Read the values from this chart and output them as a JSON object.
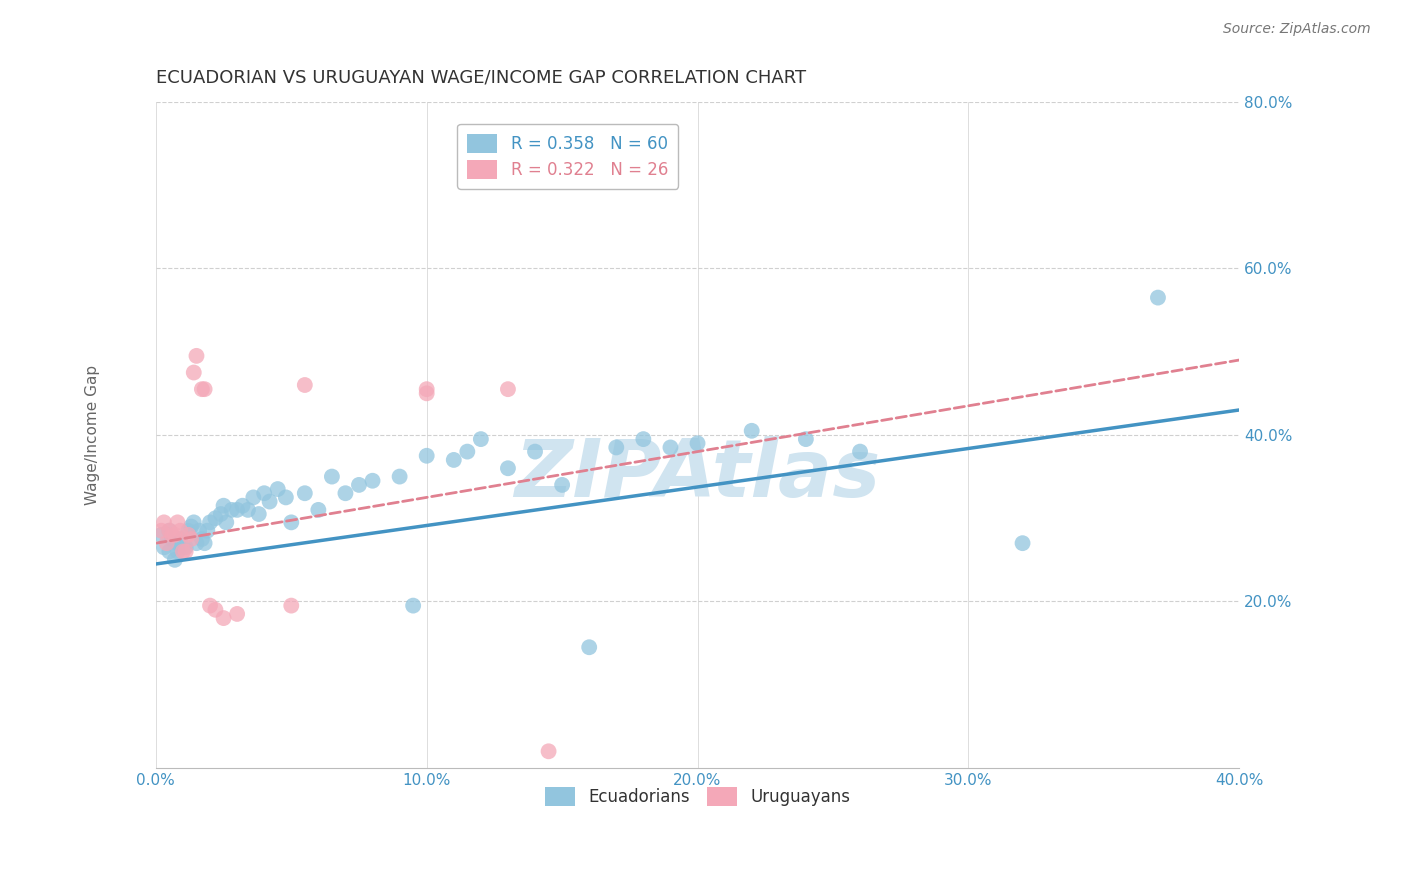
{
  "title": "ECUADORIAN VS URUGUAYAN WAGE/INCOME GAP CORRELATION CHART",
  "source": "Source: ZipAtlas.com",
  "ylabel": "Wage/Income Gap",
  "xlim": [
    0.0,
    0.4
  ],
  "ylim": [
    0.0,
    0.8
  ],
  "xtick_labels": [
    "0.0%",
    "",
    "",
    "",
    "",
    "10.0%",
    "",
    "",
    "",
    "",
    "20.0%",
    "",
    "",
    "",
    "",
    "30.0%",
    "",
    "",
    "",
    "",
    "40.0%"
  ],
  "xtick_vals": [
    0.0,
    0.02,
    0.04,
    0.06,
    0.08,
    0.1,
    0.12,
    0.14,
    0.16,
    0.18,
    0.2,
    0.22,
    0.24,
    0.26,
    0.28,
    0.3,
    0.32,
    0.34,
    0.36,
    0.38,
    0.4
  ],
  "ytick_labels": [
    "20.0%",
    "40.0%",
    "60.0%",
    "80.0%"
  ],
  "ytick_vals": [
    0.2,
    0.4,
    0.6,
    0.8
  ],
  "blue_color": "#92c5de",
  "pink_color": "#f4a8b8",
  "line_blue": "#4393c3",
  "line_pink": "#d6604d",
  "line_pink_display": "#e08090",
  "watermark_color": "#d0e4f0",
  "blue_R": 0.358,
  "blue_N": 60,
  "pink_R": 0.322,
  "pink_N": 26,
  "blue_scatter_x": [
    0.002,
    0.003,
    0.005,
    0.005,
    0.006,
    0.007,
    0.008,
    0.008,
    0.009,
    0.01,
    0.011,
    0.012,
    0.013,
    0.014,
    0.015,
    0.016,
    0.017,
    0.018,
    0.019,
    0.02,
    0.022,
    0.024,
    0.025,
    0.026,
    0.028,
    0.03,
    0.032,
    0.034,
    0.036,
    0.038,
    0.04,
    0.042,
    0.045,
    0.048,
    0.05,
    0.055,
    0.06,
    0.065,
    0.07,
    0.075,
    0.08,
    0.09,
    0.095,
    0.1,
    0.11,
    0.115,
    0.12,
    0.13,
    0.14,
    0.15,
    0.16,
    0.17,
    0.18,
    0.19,
    0.2,
    0.22,
    0.24,
    0.26,
    0.32,
    0.37
  ],
  "blue_scatter_y": [
    0.28,
    0.265,
    0.26,
    0.285,
    0.275,
    0.25,
    0.27,
    0.26,
    0.275,
    0.265,
    0.265,
    0.285,
    0.29,
    0.295,
    0.27,
    0.285,
    0.275,
    0.27,
    0.285,
    0.295,
    0.3,
    0.305,
    0.315,
    0.295,
    0.31,
    0.31,
    0.315,
    0.31,
    0.325,
    0.305,
    0.33,
    0.32,
    0.335,
    0.325,
    0.295,
    0.33,
    0.31,
    0.35,
    0.33,
    0.34,
    0.345,
    0.35,
    0.195,
    0.375,
    0.37,
    0.38,
    0.395,
    0.36,
    0.38,
    0.34,
    0.145,
    0.385,
    0.395,
    0.385,
    0.39,
    0.405,
    0.395,
    0.38,
    0.27,
    0.565
  ],
  "pink_scatter_x": [
    0.002,
    0.003,
    0.004,
    0.005,
    0.006,
    0.007,
    0.008,
    0.009,
    0.01,
    0.011,
    0.012,
    0.013,
    0.014,
    0.015,
    0.017,
    0.018,
    0.02,
    0.022,
    0.025,
    0.03,
    0.05,
    0.055,
    0.1,
    0.13,
    0.145,
    0.1
  ],
  "pink_scatter_y": [
    0.285,
    0.295,
    0.27,
    0.285,
    0.28,
    0.28,
    0.295,
    0.285,
    0.26,
    0.26,
    0.28,
    0.275,
    0.475,
    0.495,
    0.455,
    0.455,
    0.195,
    0.19,
    0.18,
    0.185,
    0.195,
    0.46,
    0.45,
    0.455,
    0.02,
    0.455
  ],
  "legend_labels": [
    "Ecuadorians",
    "Uruguayans"
  ],
  "background_color": "#ffffff",
  "grid_color": "#d0d0d0",
  "blue_line_y0": 0.245,
  "blue_line_y1": 0.43,
  "pink_line_y0": 0.27,
  "pink_line_y1": 0.49
}
